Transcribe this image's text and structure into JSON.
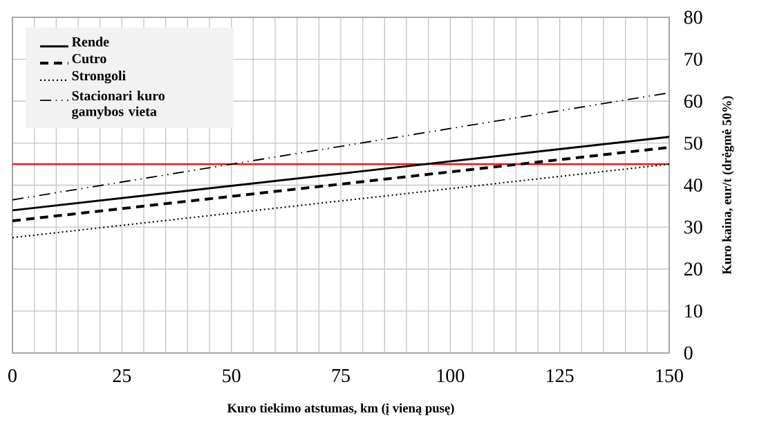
{
  "chart_data": {
    "type": "line",
    "xlabel": "Kuro tiekimo atstumas, km (į vieną pusę)",
    "ylabel": "Kuro kaina, eur/t (drėgmė 50%)",
    "x": [
      0,
      150
    ],
    "series": [
      {
        "name": "Rende",
        "color": "#000000",
        "line_style": "solid",
        "values": [
          34,
          51.5
        ]
      },
      {
        "name": "Cutro",
        "color": "#000000",
        "line_style": "dashed",
        "values": [
          31.5,
          49
        ]
      },
      {
        "name": "Strongoli",
        "color": "#000000",
        "line_style": "dotted",
        "values": [
          27.5,
          45
        ]
      },
      {
        "name": "Stacionari kuro gamybos vieta",
        "color": "#000000",
        "line_style": "dashdotdotted",
        "values": [
          36.5,
          62
        ]
      }
    ],
    "xlim": [
      0,
      150
    ],
    "ylim": [
      0,
      80
    ],
    "xticks": [
      0,
      {
        "value": 5,
        "label": null
      },
      {
        "value": 10,
        "label": null
      },
      {
        "value": 15,
        "label": null
      },
      {
        "value": 20,
        "label": null
      },
      25,
      {
        "value": 30,
        "label": null
      },
      {
        "value": 35,
        "label": null
      },
      {
        "value": 40,
        "label": null
      },
      {
        "value": 45,
        "label": null
      },
      50,
      {
        "value": 55,
        "label": null
      },
      {
        "value": 60,
        "label": null
      },
      {
        "value": 65,
        "label": null
      },
      {
        "value": 70,
        "label": null
      },
      75,
      {
        "value": 80,
        "label": null
      },
      {
        "value": 85,
        "label": null
      },
      {
        "value": 90,
        "label": null
      },
      {
        "value": 95,
        "label": null
      },
      100,
      {
        "value": 105,
        "label": null
      },
      {
        "value": 110,
        "label": null
      },
      {
        "value": 115,
        "label": null
      },
      {
        "value": 120,
        "label": null
      },
      125,
      {
        "value": 130,
        "label": null
      },
      {
        "value": 135,
        "label": null
      },
      {
        "value": 140,
        "label": null
      },
      {
        "value": 145,
        "label": null
      },
      150
    ],
    "yticks": [
      0,
      10,
      20,
      30,
      40,
      50,
      60,
      70,
      80
    ],
    "ref_lines": [
      {
        "axis": "y",
        "value": 45,
        "color": "#ff0000"
      }
    ],
    "grid": true,
    "legend": "top left",
    "marker": "none"
  }
}
